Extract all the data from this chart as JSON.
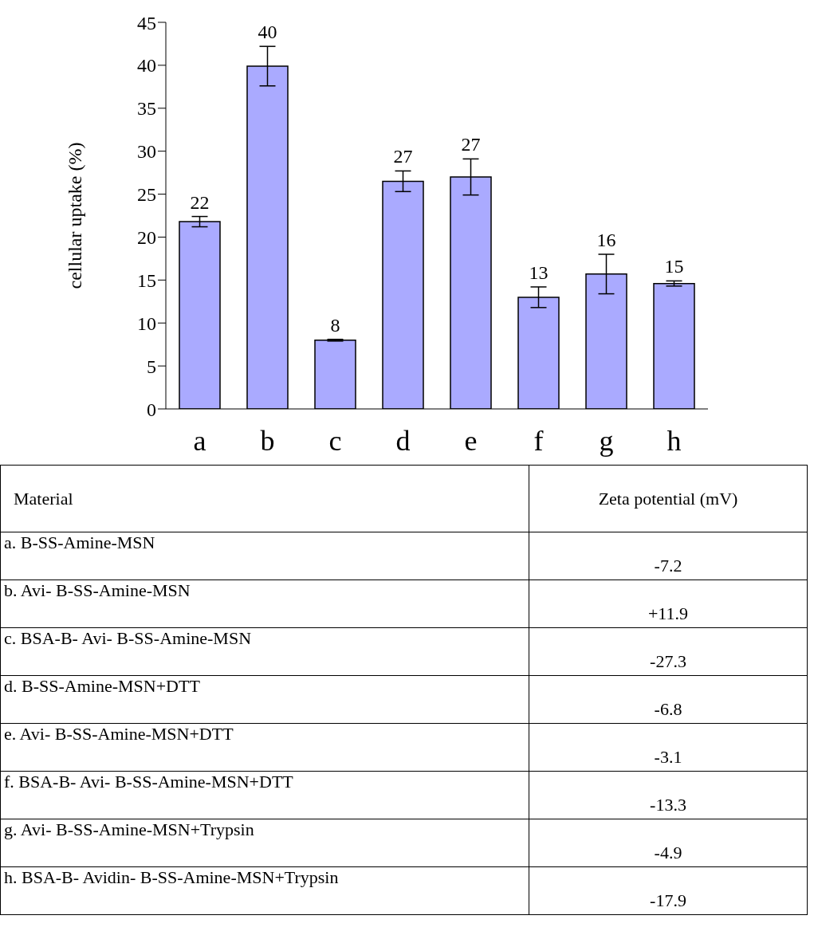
{
  "chart_data": [
    {
      "type": "bar",
      "ylabel": "cellular uptake (%)",
      "categories": [
        "a",
        "b",
        "c",
        "d",
        "e",
        "f",
        "g",
        "h"
      ],
      "values": [
        21.8,
        39.9,
        8.0,
        26.5,
        27.0,
        13.0,
        15.7,
        14.6
      ],
      "errors": [
        0.6,
        2.3,
        0.1,
        1.2,
        2.1,
        1.2,
        2.3,
        0.3
      ],
      "value_labels": [
        "22",
        "40",
        "8",
        "27",
        "27",
        "13",
        "16",
        "15"
      ],
      "color": "#aaaaff",
      "ylim": [
        0,
        45
      ],
      "yticks": [
        0,
        5,
        10,
        15,
        20,
        25,
        30,
        35,
        40,
        45
      ],
      "grid": false,
      "legend": false
    },
    {
      "type": "other",
      "annotations": [
        "Material",
        "Zeta potential (mV)",
        "a. B-SS-Amine-MSN",
        "-7.2",
        "b. Avi- B-SS-Amine-MSN",
        "+11.9",
        "c. BSA-B- Avi- B-SS-Amine-MSN",
        "-27.3",
        "d. B-SS-Amine-MSN+DTT",
        "-6.8",
        "e. Avi- B-SS-Amine-MSN+DTT",
        "-3.1",
        "f. BSA-B- Avi- B-SS-Amine-MSN+DTT",
        "-13.3",
        "g. Avi- B-SS-Amine-MSN+Trypsin",
        "-4.9",
        "h. BSA-B- Avidin- B-SS-Amine-MSN+Trypsin",
        "-17.9"
      ]
    }
  ]
}
